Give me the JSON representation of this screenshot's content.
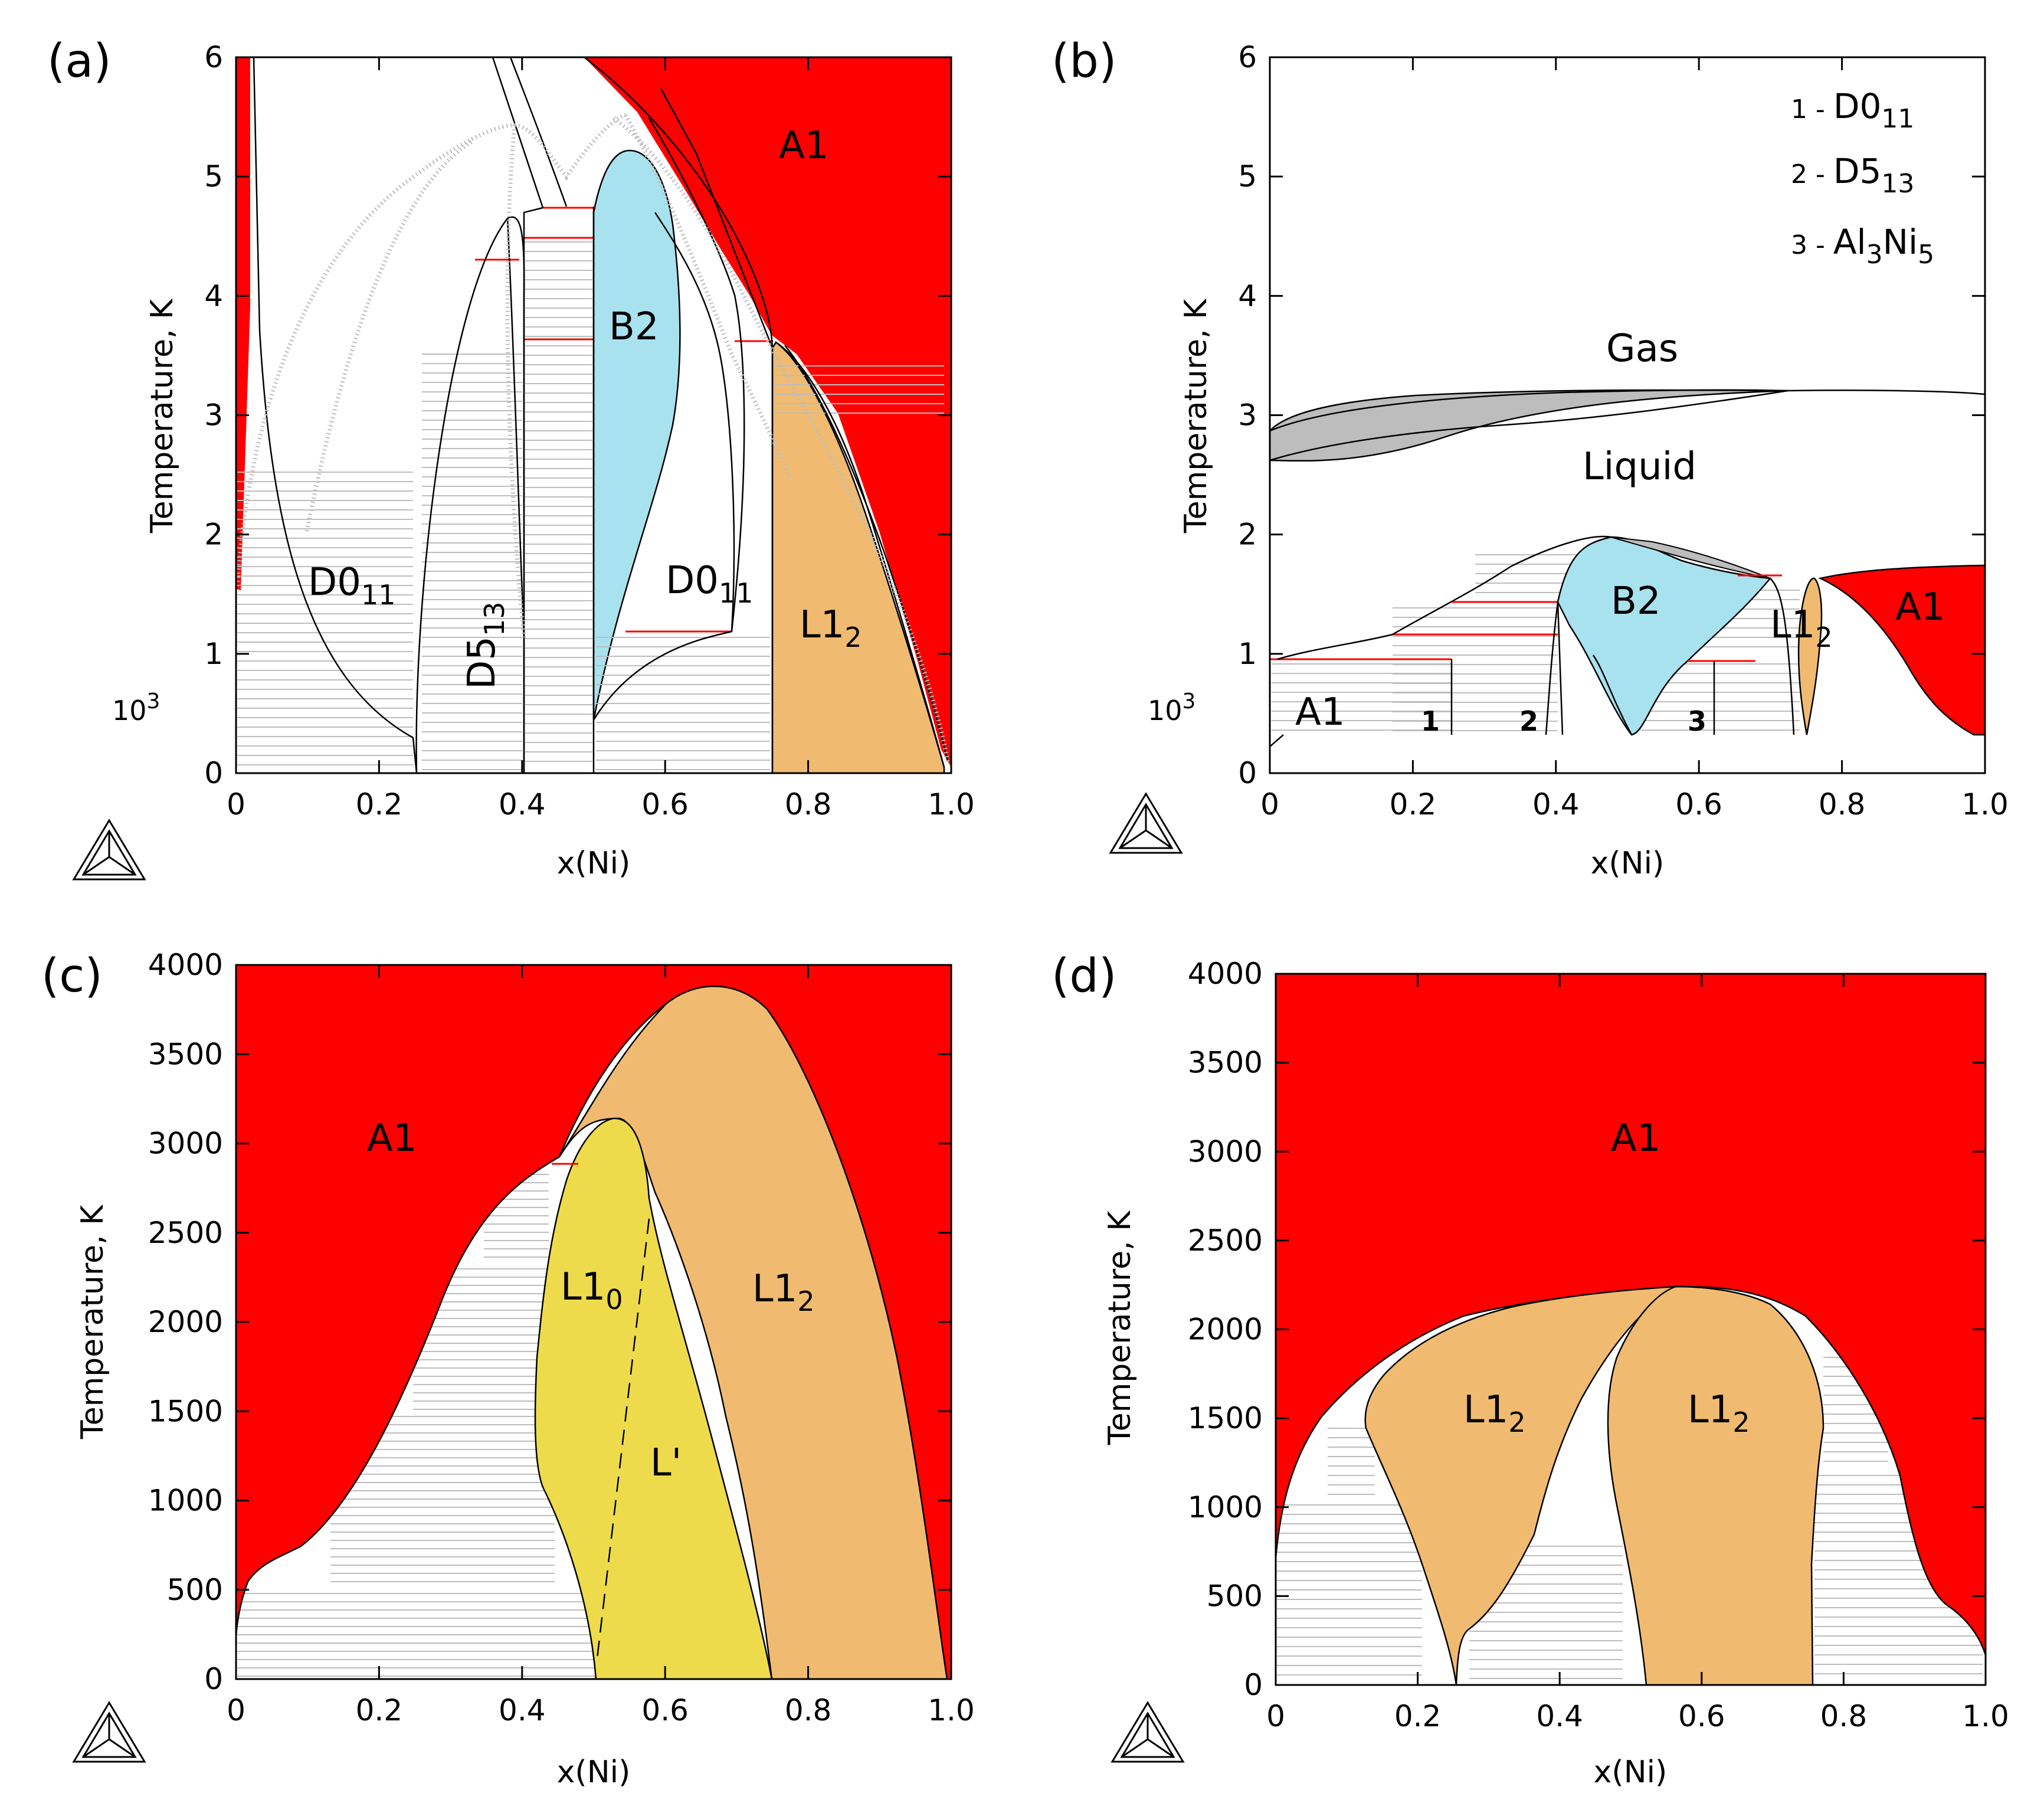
{
  "colors": {
    "A1": "#ff0000",
    "B2": "#a8e2ee",
    "L1_2": "#f0bb70",
    "L1_0": "#eedb4c",
    "gas_liquid_two_phase": "#bdbdbd",
    "tie_line": "#bdbdbd",
    "invariant_line": "#ff0000",
    "boundary": "#000000"
  },
  "logo_icon": "thermo-calc-triangle-icon",
  "chart_data": [
    {
      "panel": "(a)",
      "type": "area",
      "xlabel": "x(Ni)",
      "ylabel": "Temperature, K",
      "multiplier": "10",
      "multiplier_exp": "3",
      "xlim": [
        0,
        1
      ],
      "ylim": [
        0,
        6
      ],
      "xticks": [
        "0",
        "0.2",
        "0.4",
        "0.6",
        "0.8",
        "1.0"
      ],
      "yticks": [
        "0",
        "1",
        "2",
        "3",
        "4",
        "5",
        "6"
      ],
      "grid": false,
      "phase_labels": [
        {
          "base": "A1",
          "sub": ""
        },
        {
          "base": "B2",
          "sub": ""
        },
        {
          "base": "D0",
          "sub": "11"
        },
        {
          "base": "D5",
          "sub": "13"
        },
        {
          "base": "D0",
          "sub": "11"
        },
        {
          "base": "L1",
          "sub": "2"
        }
      ],
      "regions": [
        {
          "phase": "A1",
          "boundary": [
            [
              0.75,
              3.65
            ],
            [
              0.78,
              3.55
            ],
            [
              0.82,
              3.2
            ],
            [
              0.86,
              2.6
            ],
            [
              0.9,
              1.9
            ],
            [
              0.95,
              1.0
            ],
            [
              0.98,
              0.4
            ],
            [
              1.0,
              0.1
            ],
            [
              1.0,
              6.0
            ],
            [
              0.49,
              6.0
            ],
            [
              0.6,
              5.4
            ],
            [
              0.7,
              4.6
            ]
          ]
        },
        {
          "phase": "A1",
          "boundary": [
            [
              0.0,
              6.0
            ],
            [
              0.02,
              6.0
            ],
            [
              0.02,
              3.5
            ],
            [
              0.005,
              1.5
            ],
            [
              0.0,
              1.5
            ]
          ]
        },
        {
          "phase": "B2",
          "boundary": [
            [
              0.5,
              0.45
            ],
            [
              0.5,
              4.6
            ],
            [
              0.52,
              5.05
            ],
            [
              0.55,
              5.2
            ],
            [
              0.58,
              5.15
            ],
            [
              0.61,
              4.75
            ],
            [
              0.63,
              4.1
            ],
            [
              0.62,
              3.3
            ],
            [
              0.58,
              2.4
            ],
            [
              0.52,
              1.1
            ]
          ]
        },
        {
          "phase": "L1_2",
          "boundary": [
            [
              0.75,
              0.0
            ],
            [
              0.75,
              3.65
            ],
            [
              0.78,
              3.6
            ],
            [
              0.84,
              2.7
            ],
            [
              0.9,
              1.6
            ],
            [
              0.95,
              0.6
            ],
            [
              0.99,
              0.05
            ],
            [
              0.99,
              0.0
            ]
          ]
        }
      ],
      "invariant_temperatures_1e3K": [
        4.3,
        4.5,
        4.75,
        3.65,
        3.65,
        1.18
      ]
    },
    {
      "panel": "(b)",
      "type": "area",
      "xlabel": "x(Ni)",
      "ylabel": "Temperature, K",
      "multiplier": "10",
      "multiplier_exp": "3",
      "xlim": [
        0,
        1
      ],
      "ylim": [
        0,
        6
      ],
      "xticks": [
        "0",
        "0.2",
        "0.4",
        "0.6",
        "0.8",
        "1.0"
      ],
      "yticks": [
        "0",
        "1",
        "2",
        "3",
        "4",
        "5",
        "6"
      ],
      "grid": false,
      "legend_position": "top-right",
      "legend": [
        {
          "num": "1",
          "base": "D0",
          "sub": "11"
        },
        {
          "num": "2",
          "base": "D5",
          "sub": "13"
        },
        {
          "num": "3",
          "base": "Al",
          "mid": "Ni",
          "sub1": "3",
          "sub2": "5"
        }
      ],
      "phase_labels": [
        {
          "base": "Gas",
          "sub": ""
        },
        {
          "base": "Liquid",
          "sub": ""
        },
        {
          "base": "B2",
          "sub": ""
        },
        {
          "base": "L1",
          "sub": "2"
        },
        {
          "base": "A1",
          "sub": ""
        },
        {
          "base": "A1",
          "sub": ""
        }
      ],
      "region_numbers": [
        "1",
        "2",
        "3"
      ],
      "regions": [
        {
          "phase": "Gas+Liquid",
          "boundary": [
            [
              0.0,
              2.62
            ],
            [
              0.0,
              2.8
            ],
            [
              0.1,
              3.02
            ],
            [
              0.3,
              3.1
            ],
            [
              0.55,
              3.15
            ],
            [
              0.8,
              3.18
            ],
            [
              0.5,
              3.05
            ],
            [
              0.25,
              2.85
            ],
            [
              0.08,
              2.68
            ]
          ]
        },
        {
          "phase": "B2",
          "boundary": [
            [
              0.41,
              1.42
            ],
            [
              0.44,
              1.8
            ],
            [
              0.48,
              1.95
            ],
            [
              0.5,
              1.95
            ],
            [
              0.58,
              1.8
            ],
            [
              0.7,
              1.65
            ],
            [
              0.6,
              1.2
            ],
            [
              0.55,
              0.7
            ],
            [
              0.5,
              0.3
            ],
            [
              0.45,
              0.9
            ]
          ]
        },
        {
          "phase": "L1_2",
          "boundary": [
            [
              0.75,
              0.3
            ],
            [
              0.78,
              0.8
            ],
            [
              0.78,
              1.3
            ],
            [
              0.77,
              1.6
            ],
            [
              0.74,
              1.6
            ],
            [
              0.72,
              1.2
            ],
            [
              0.73,
              0.8
            ]
          ]
        },
        {
          "phase": "A1",
          "boundary": [
            [
              0.77,
              1.62
            ],
            [
              0.85,
              1.7
            ],
            [
              1.0,
              1.72
            ],
            [
              1.0,
              0.3
            ],
            [
              0.98,
              0.3
            ],
            [
              0.92,
              0.6
            ],
            [
              0.86,
              1.1
            ],
            [
              0.8,
              1.5
            ]
          ]
        }
      ],
      "invariant_temperatures_1e3K": [
        0.92,
        1.15,
        1.43,
        0.93,
        1.65
      ]
    },
    {
      "panel": "(c)",
      "type": "area",
      "xlabel": "x(Ni)",
      "ylabel": "Temperature, K",
      "xlim": [
        0,
        1
      ],
      "ylim": [
        0,
        4000
      ],
      "xticks": [
        "0",
        "0.2",
        "0.4",
        "0.6",
        "0.8",
        "1.0"
      ],
      "yticks": [
        "0",
        "500",
        "1000",
        "1500",
        "2000",
        "2500",
        "3000",
        "3500",
        "4000"
      ],
      "grid": false,
      "phase_labels": [
        {
          "base": "A1",
          "sub": ""
        },
        {
          "base": "L1",
          "sub": "0"
        },
        {
          "base": "L1",
          "sub": "2"
        },
        {
          "base": "L'",
          "sub": ""
        }
      ],
      "regions": [
        {
          "phase": "L1_2",
          "boundary": [
            [
              0.45,
              2920
            ],
            [
              0.5,
              3300
            ],
            [
              0.58,
              3750
            ],
            [
              0.66,
              3880
            ],
            [
              0.72,
              3780
            ],
            [
              0.8,
              3300
            ],
            [
              0.9,
              2300
            ],
            [
              0.97,
              900
            ],
            [
              1.0,
              0
            ],
            [
              0.75,
              0
            ],
            [
              0.7,
              700
            ],
            [
              0.6,
              1800
            ],
            [
              0.55,
              2600
            ],
            [
              0.53,
              3050
            ],
            [
              0.5,
              3050
            ]
          ]
        },
        {
          "phase": "L1_0",
          "boundary": [
            [
              0.5,
              0
            ],
            [
              0.75,
              0
            ],
            [
              0.7,
              700
            ],
            [
              0.62,
              1600
            ],
            [
              0.57,
              2300
            ],
            [
              0.55,
              2700
            ],
            [
              0.53,
              3120
            ],
            [
              0.5,
              3050
            ],
            [
              0.46,
              2800
            ],
            [
              0.42,
              2000
            ],
            [
              0.42,
              1200
            ],
            [
              0.48,
              600
            ]
          ]
        }
      ],
      "invariant_temperatures_K": [
        2900
      ]
    },
    {
      "panel": "(d)",
      "type": "area",
      "xlabel": "x(Ni)",
      "ylabel": "Temperature, K",
      "xlim": [
        0,
        1
      ],
      "ylim": [
        0,
        4000
      ],
      "xticks": [
        "0",
        "0.2",
        "0.4",
        "0.6",
        "0.8",
        "1.0"
      ],
      "yticks": [
        "0",
        "500",
        "1000",
        "1500",
        "2000",
        "2500",
        "3000",
        "3500",
        "4000"
      ],
      "grid": false,
      "phase_labels": [
        {
          "base": "A1",
          "sub": ""
        },
        {
          "base": "L1",
          "sub": "2"
        },
        {
          "base": "L1",
          "sub": "2"
        }
      ],
      "regions": [
        {
          "phase": "L1_2",
          "boundary": [
            [
              0.25,
              0
            ],
            [
              0.27,
              350
            ],
            [
              0.33,
              700
            ],
            [
              0.38,
              1100
            ],
            [
              0.41,
              1500
            ],
            [
              0.45,
              1850
            ],
            [
              0.53,
              2050
            ],
            [
              0.56,
              2100
            ],
            [
              0.45,
              2080
            ],
            [
              0.3,
              2020
            ],
            [
              0.2,
              1850
            ],
            [
              0.14,
              1550
            ],
            [
              0.14,
              1400
            ],
            [
              0.2,
              800
            ]
          ]
        },
        {
          "phase": "L1_2",
          "boundary": [
            [
              0.52,
              0
            ],
            [
              0.75,
              0
            ],
            [
              0.75,
              500
            ],
            [
              0.77,
              1000
            ],
            [
              0.77,
              1450
            ],
            [
              0.72,
              1850
            ],
            [
              0.62,
              2100
            ],
            [
              0.56,
              2100
            ],
            [
              0.5,
              1900
            ],
            [
              0.49,
              1500
            ],
            [
              0.5,
              900
            ]
          ]
        }
      ]
    }
  ]
}
